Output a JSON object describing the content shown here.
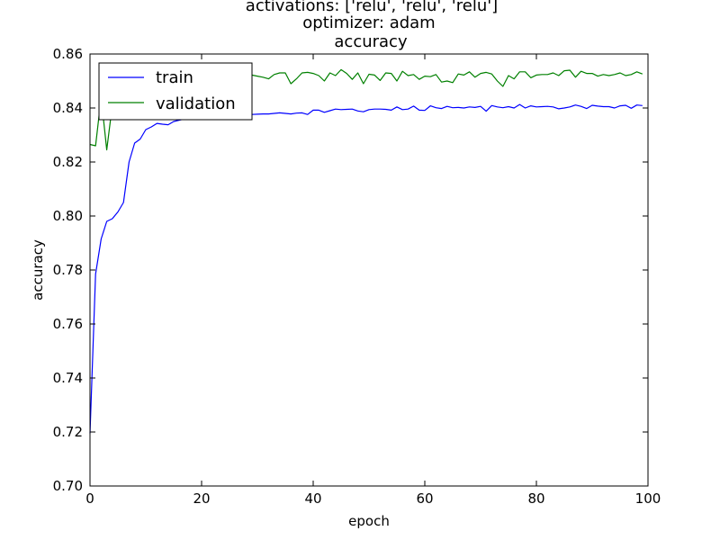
{
  "chart_data": {
    "type": "line",
    "title_lines": [
      "activations: ['relu', 'relu', 'relu']",
      "optimizer: adam",
      "accuracy"
    ],
    "xlabel": "epoch",
    "ylabel": "accuracy",
    "xlim": [
      0,
      100
    ],
    "ylim": [
      0.7,
      0.86
    ],
    "xticks": [
      0,
      20,
      40,
      60,
      80,
      100
    ],
    "xtick_labels": [
      "0",
      "20",
      "40",
      "60",
      "80",
      "100"
    ],
    "yticks": [
      0.7,
      0.72,
      0.74,
      0.76,
      0.78,
      0.8,
      0.82,
      0.84,
      0.86
    ],
    "ytick_labels": [
      "0.70",
      "0.72",
      "0.74",
      "0.76",
      "0.78",
      "0.80",
      "0.82",
      "0.84",
      "0.86"
    ],
    "grid": false,
    "legend_position": "top-left",
    "x": [
      0,
      1,
      2,
      3,
      4,
      5,
      6,
      7,
      8,
      9,
      10,
      11,
      12,
      13,
      14,
      15,
      16,
      17,
      18,
      19,
      20,
      21,
      22,
      23,
      24,
      25,
      26,
      27,
      28,
      29,
      30,
      31,
      32,
      33,
      34,
      35,
      36,
      37,
      38,
      39,
      40,
      41,
      42,
      43,
      44,
      45,
      46,
      47,
      48,
      49,
      50,
      51,
      52,
      53,
      54,
      55,
      56,
      57,
      58,
      59,
      60,
      61,
      62,
      63,
      64,
      65,
      66,
      67,
      68,
      69,
      70,
      71,
      72,
      73,
      74,
      75,
      76,
      77,
      78,
      79,
      80,
      81,
      82,
      83,
      84,
      85,
      86,
      87,
      88,
      89,
      90,
      91,
      92,
      93,
      94,
      95,
      96,
      97,
      98,
      99
    ],
    "series": [
      {
        "name": "train",
        "color": "#0000ff",
        "values": [
          0.7195,
          0.7785,
          0.7915,
          0.798,
          0.799,
          0.8015,
          0.805,
          0.82,
          0.827,
          0.8285,
          0.832,
          0.833,
          0.8343,
          0.834,
          0.8338,
          0.835,
          0.8355,
          0.836,
          0.836,
          0.8362,
          0.8368,
          0.8365,
          0.837,
          0.837,
          0.8372,
          0.8372,
          0.8374,
          0.8376,
          0.8376,
          0.8376,
          0.8377,
          0.8378,
          0.8378,
          0.838,
          0.8382,
          0.838,
          0.8378,
          0.8381,
          0.8382,
          0.8376,
          0.8392,
          0.8392,
          0.8384,
          0.839,
          0.8396,
          0.8394,
          0.8395,
          0.8396,
          0.8389,
          0.8386,
          0.8394,
          0.8396,
          0.8396,
          0.8395,
          0.8392,
          0.8404,
          0.8394,
          0.8396,
          0.8407,
          0.8392,
          0.8391,
          0.8408,
          0.8401,
          0.8398,
          0.8406,
          0.8401,
          0.8402,
          0.84,
          0.8404,
          0.8402,
          0.8406,
          0.8388,
          0.8409,
          0.8404,
          0.8401,
          0.8405,
          0.84,
          0.8413,
          0.84,
          0.8408,
          0.8404,
          0.8405,
          0.8406,
          0.8404,
          0.8397,
          0.84,
          0.8404,
          0.8411,
          0.8406,
          0.8398,
          0.841,
          0.8407,
          0.8405,
          0.8405,
          0.84,
          0.8408,
          0.841,
          0.8399,
          0.8411,
          0.8409
        ]
      },
      {
        "name": "validation",
        "color": "#008000",
        "values": [
          0.8265,
          0.826,
          0.844,
          0.8245,
          0.841,
          0.844,
          0.846,
          0.848,
          0.849,
          0.8495,
          0.85,
          0.8505,
          0.85,
          0.851,
          0.8505,
          0.851,
          0.8512,
          0.8508,
          0.8515,
          0.851,
          0.8516,
          0.8514,
          0.852,
          0.8522,
          0.8518,
          0.8524,
          0.852,
          0.8522,
          0.8516,
          0.8522,
          0.8518,
          0.8514,
          0.8508,
          0.8524,
          0.853,
          0.853,
          0.849,
          0.8508,
          0.853,
          0.8532,
          0.8528,
          0.852,
          0.85,
          0.853,
          0.852,
          0.8542,
          0.8528,
          0.8506,
          0.853,
          0.849,
          0.8525,
          0.8522,
          0.8502,
          0.853,
          0.8528,
          0.85,
          0.8536,
          0.852,
          0.8524,
          0.8506,
          0.8518,
          0.8516,
          0.8524,
          0.8496,
          0.85,
          0.8494,
          0.8526,
          0.8522,
          0.8534,
          0.8514,
          0.8528,
          0.8532,
          0.8526,
          0.85,
          0.848,
          0.852,
          0.8508,
          0.8534,
          0.8534,
          0.8512,
          0.8522,
          0.8524,
          0.8524,
          0.853,
          0.852,
          0.8538,
          0.854,
          0.8514,
          0.8536,
          0.8528,
          0.8528,
          0.8518,
          0.8524,
          0.852,
          0.8524,
          0.853,
          0.852,
          0.8524,
          0.8534,
          0.8526
        ]
      }
    ]
  }
}
